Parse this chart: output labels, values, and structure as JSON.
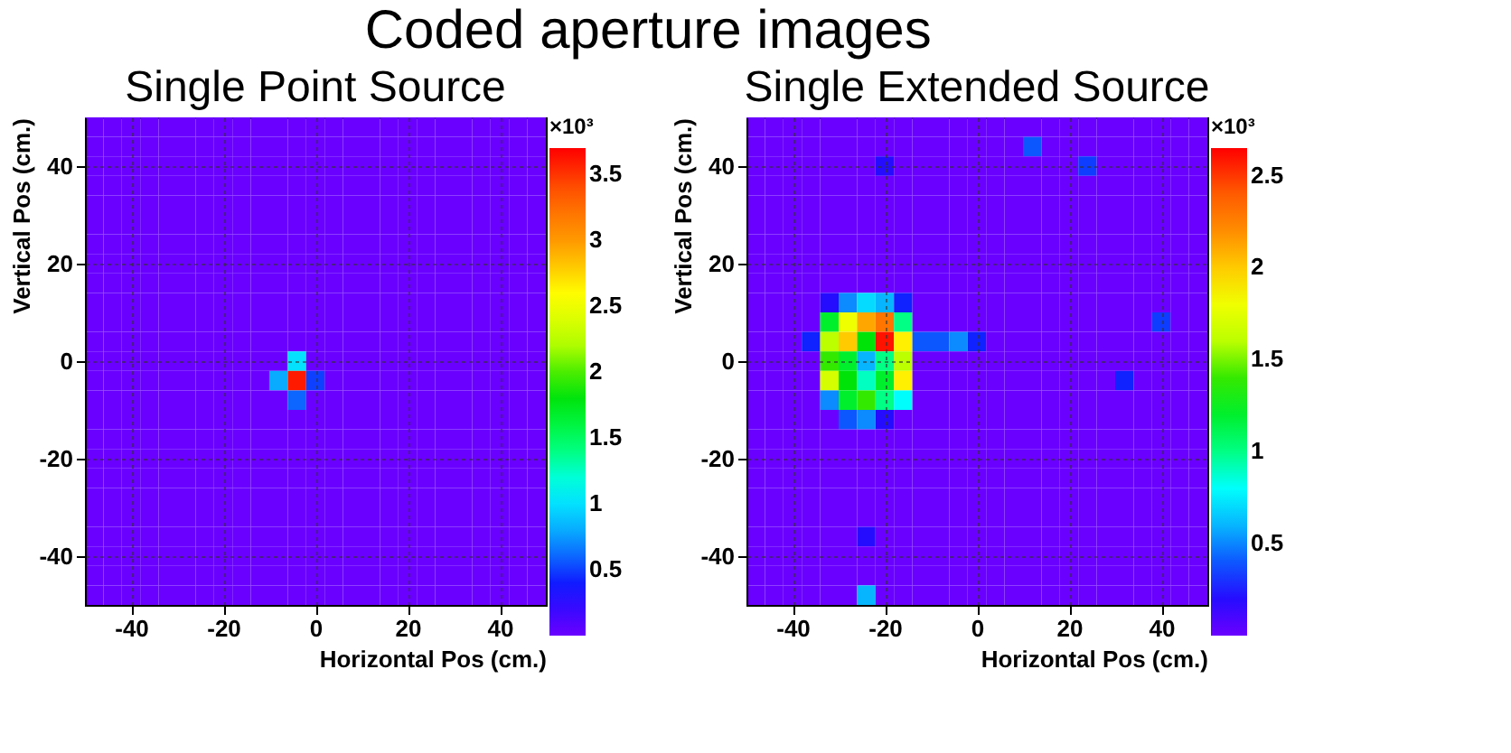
{
  "chart_data": [
    {
      "type": "heatmap",
      "title": "Single Point Source",
      "xlabel": "Horizontal Pos (cm.)",
      "ylabel": "Vertical Pos (cm.)",
      "clabel": "×10³",
      "annotations": [
        "Coded aperture images"
      ],
      "x": [
        -48,
        -44,
        -40,
        -36,
        -32,
        -28,
        -24,
        -20,
        -16,
        -12,
        -8,
        -4,
        0,
        4,
        8,
        12,
        16,
        20,
        24,
        28,
        32,
        36,
        40,
        44,
        48
      ],
      "y": [
        48,
        44,
        40,
        36,
        32,
        28,
        24,
        20,
        16,
        12,
        8,
        4,
        0,
        -4,
        -8,
        -12,
        -16,
        -20,
        -24,
        -28,
        -32,
        -36,
        -40,
        -44,
        -48
      ],
      "xlim": [
        -50,
        50
      ],
      "ylim": [
        -50,
        50
      ],
      "xticks": [
        -40,
        -20,
        0,
        20,
        40
      ],
      "yticks": [
        -40,
        -20,
        0,
        20,
        40
      ],
      "grid": true,
      "clim": [
        0,
        3.7
      ],
      "cticks": [
        0.5,
        1,
        1.5,
        2,
        2.5,
        3,
        3.5
      ],
      "cells": [
        [
          0,
          0,
          0,
          0,
          0,
          0,
          0,
          0,
          0,
          0,
          0,
          0,
          0,
          0,
          0,
          0,
          0,
          0,
          0,
          0,
          0,
          0,
          0,
          0,
          0
        ],
        [
          0,
          0,
          0,
          0,
          0,
          0,
          0,
          0,
          0,
          0,
          0,
          0,
          0,
          0,
          0,
          0,
          0,
          0,
          0,
          0,
          0,
          0,
          0,
          0,
          0
        ],
        [
          0,
          0,
          0,
          0,
          0,
          0,
          0,
          0,
          0,
          0,
          0,
          0,
          0,
          0,
          0,
          0,
          0,
          0,
          0,
          0,
          0,
          0,
          0,
          0,
          0
        ],
        [
          0,
          0,
          0,
          0,
          0,
          0,
          0,
          0,
          0,
          0,
          0,
          0,
          0,
          0,
          0,
          0,
          0,
          0,
          0,
          0,
          0,
          0,
          0,
          0,
          0
        ],
        [
          0,
          0,
          0,
          0,
          0,
          0,
          0,
          0,
          0,
          0,
          0,
          0,
          0,
          0,
          0,
          0,
          0,
          0,
          0,
          0,
          0,
          0,
          0,
          0,
          0
        ],
        [
          0,
          0,
          0,
          0,
          0,
          0,
          0,
          0,
          0,
          0,
          0,
          0,
          0,
          0,
          0,
          0,
          0,
          0,
          0,
          0,
          0,
          0,
          0,
          0,
          0
        ],
        [
          0,
          0,
          0,
          0,
          0,
          0,
          0,
          0,
          0,
          0,
          0,
          0,
          0,
          0,
          0,
          0,
          0,
          0,
          0,
          0,
          0,
          0,
          0,
          0,
          0
        ],
        [
          0,
          0,
          0,
          0,
          0,
          0,
          0,
          0,
          0,
          0,
          0,
          0,
          0,
          0,
          0,
          0,
          0,
          0,
          0,
          0,
          0,
          0,
          0,
          0,
          0
        ],
        [
          0,
          0,
          0,
          0,
          0,
          0,
          0,
          0,
          0,
          0,
          0,
          0,
          0,
          0,
          0,
          0,
          0,
          0,
          0,
          0,
          0,
          0,
          0,
          0,
          0
        ],
        [
          0,
          0,
          0,
          0,
          0,
          0,
          0,
          0,
          0,
          0,
          0,
          0,
          0,
          0,
          0,
          0,
          0,
          0,
          0,
          0,
          0,
          0,
          0,
          0,
          0
        ],
        [
          0,
          0,
          0,
          0,
          0,
          0,
          0,
          0,
          0,
          0,
          0,
          0,
          0,
          0,
          0,
          0,
          0,
          0,
          0,
          0,
          0,
          0,
          0,
          0,
          0
        ],
        [
          0,
          0,
          0,
          0,
          0,
          0,
          0,
          0,
          0,
          0,
          0,
          0,
          0,
          0,
          0,
          0,
          0,
          0,
          0,
          0,
          0,
          0,
          0,
          0,
          0
        ],
        [
          0,
          0,
          0,
          0,
          0,
          0,
          0,
          0,
          0,
          0,
          0,
          1.0,
          0,
          0,
          0,
          0,
          0,
          0,
          0,
          0,
          0,
          0,
          0,
          0,
          0
        ],
        [
          0,
          0,
          0,
          0,
          0,
          0,
          0,
          0,
          0,
          0,
          0.8,
          3.6,
          0.5,
          0,
          0,
          0,
          0,
          0,
          0,
          0,
          0,
          0,
          0,
          0,
          0
        ],
        [
          0,
          0,
          0,
          0,
          0,
          0,
          0,
          0,
          0,
          0,
          0,
          0.6,
          0,
          0,
          0,
          0,
          0,
          0,
          0,
          0,
          0,
          0,
          0,
          0,
          0
        ],
        [
          0,
          0,
          0,
          0,
          0,
          0,
          0,
          0,
          0,
          0,
          0,
          0,
          0,
          0,
          0,
          0,
          0,
          0,
          0,
          0,
          0,
          0,
          0,
          0,
          0
        ],
        [
          0,
          0,
          0,
          0,
          0,
          0,
          0,
          0,
          0,
          0,
          0,
          0,
          0,
          0,
          0,
          0,
          0,
          0,
          0,
          0,
          0,
          0,
          0,
          0,
          0
        ],
        [
          0,
          0,
          0,
          0,
          0,
          0,
          0,
          0,
          0,
          0,
          0,
          0,
          0,
          0,
          0,
          0,
          0,
          0,
          0,
          0,
          0,
          0,
          0,
          0,
          0
        ],
        [
          0,
          0,
          0,
          0,
          0,
          0,
          0,
          0,
          0,
          0,
          0,
          0,
          0,
          0,
          0,
          0,
          0,
          0,
          0,
          0,
          0,
          0,
          0,
          0,
          0
        ],
        [
          0,
          0,
          0,
          0,
          0,
          0,
          0,
          0,
          0,
          0,
          0,
          0,
          0,
          0,
          0,
          0,
          0,
          0,
          0,
          0,
          0,
          0,
          0,
          0,
          0
        ],
        [
          0,
          0,
          0,
          0,
          0,
          0,
          0,
          0,
          0,
          0,
          0,
          0,
          0,
          0,
          0,
          0,
          0,
          0,
          0,
          0,
          0,
          0,
          0,
          0,
          0
        ],
        [
          0,
          0,
          0,
          0,
          0,
          0,
          0,
          0,
          0,
          0,
          0,
          0,
          0,
          0,
          0,
          0,
          0,
          0,
          0,
          0,
          0,
          0,
          0,
          0,
          0
        ],
        [
          0,
          0,
          0,
          0,
          0,
          0,
          0,
          0,
          0,
          0,
          0,
          0,
          0,
          0,
          0,
          0,
          0,
          0,
          0,
          0,
          0,
          0,
          0,
          0,
          0
        ],
        [
          0,
          0,
          0,
          0,
          0,
          0,
          0,
          0,
          0,
          0,
          0,
          0,
          0,
          0,
          0,
          0,
          0,
          0,
          0,
          0,
          0,
          0,
          0,
          0,
          0
        ],
        [
          0,
          0,
          0,
          0,
          0,
          0,
          0,
          0,
          0,
          0,
          0,
          0,
          0,
          0,
          0,
          0,
          0,
          0,
          0,
          0,
          0,
          0,
          0,
          0,
          0
        ]
      ]
    },
    {
      "type": "heatmap",
      "title": "Single Extended Source",
      "xlabel": "Horizontal Pos (cm.)",
      "ylabel": "Vertical Pos (cm.)",
      "clabel": "×10³",
      "x": [
        -48,
        -44,
        -40,
        -36,
        -32,
        -28,
        -24,
        -20,
        -16,
        -12,
        -8,
        -4,
        0,
        4,
        8,
        12,
        16,
        20,
        24,
        28,
        32,
        36,
        40,
        44,
        48
      ],
      "y": [
        48,
        44,
        40,
        36,
        32,
        28,
        24,
        20,
        16,
        12,
        8,
        4,
        0,
        -4,
        -8,
        -12,
        -16,
        -20,
        -24,
        -28,
        -32,
        -36,
        -40,
        -44,
        -48
      ],
      "xlim": [
        -50,
        50
      ],
      "ylim": [
        -50,
        50
      ],
      "xticks": [
        -40,
        -20,
        0,
        20,
        40
      ],
      "yticks": [
        -40,
        -20,
        0,
        20,
        40
      ],
      "grid": true,
      "clim": [
        0,
        2.65
      ],
      "cticks": [
        0.5,
        1,
        1.5,
        2,
        2.5
      ],
      "cells": [
        [
          0,
          0,
          0,
          0,
          0,
          0,
          0,
          0,
          0,
          0,
          0,
          0,
          0,
          0,
          0,
          0,
          0,
          0,
          0,
          0,
          0,
          0,
          0,
          0,
          0
        ],
        [
          0,
          0,
          0,
          0,
          0,
          0,
          0,
          0,
          0,
          0,
          0,
          0,
          0,
          0,
          0,
          0.4,
          0,
          0,
          0,
          0,
          0,
          0,
          0,
          0,
          0
        ],
        [
          0,
          0,
          0,
          0,
          0,
          0,
          0,
          0.2,
          0,
          0,
          0,
          0,
          0,
          0,
          0,
          0,
          0,
          0,
          0.35,
          0,
          0,
          0,
          0,
          0,
          0
        ],
        [
          0,
          0,
          0,
          0,
          0,
          0,
          0,
          0,
          0,
          0,
          0,
          0,
          0,
          0,
          0,
          0,
          0,
          0,
          0,
          0,
          0,
          0,
          0,
          0,
          0
        ],
        [
          0,
          0,
          0,
          0,
          0,
          0,
          0,
          0,
          0,
          0,
          0,
          0,
          0,
          0,
          0,
          0,
          0,
          0,
          0,
          0,
          0,
          0,
          0,
          0,
          0
        ],
        [
          0,
          0,
          0,
          0,
          0,
          0,
          0,
          0,
          0,
          0,
          0,
          0,
          0,
          0,
          0,
          0,
          0,
          0,
          0,
          0,
          0,
          0,
          0,
          0,
          0
        ],
        [
          0,
          0,
          0,
          0,
          0,
          0,
          0,
          0,
          0,
          0,
          0,
          0,
          0,
          0,
          0,
          0,
          0,
          0,
          0,
          0,
          0,
          0,
          0,
          0,
          0
        ],
        [
          0,
          0,
          0,
          0,
          0,
          0,
          0,
          0,
          0,
          0,
          0,
          0,
          0,
          0,
          0,
          0,
          0,
          0,
          0,
          0,
          0,
          0,
          0,
          0,
          0
        ],
        [
          0,
          0,
          0,
          0,
          0,
          0,
          0,
          0,
          0,
          0,
          0,
          0,
          0,
          0,
          0,
          0,
          0,
          0,
          0,
          0,
          0,
          0,
          0,
          0,
          0
        ],
        [
          0,
          0,
          0,
          0,
          0.2,
          0.5,
          0.7,
          0.6,
          0.3,
          0,
          0,
          0,
          0,
          0,
          0,
          0,
          0,
          0,
          0,
          0,
          0,
          0,
          0,
          0,
          0
        ],
        [
          0,
          0,
          0,
          0,
          1.2,
          1.8,
          2.1,
          2.3,
          1.0,
          0,
          0,
          0,
          0,
          0,
          0,
          0,
          0,
          0,
          0,
          0,
          0,
          0,
          0.35,
          0,
          0
        ],
        [
          0,
          0,
          0,
          0.3,
          1.6,
          2.0,
          1.3,
          2.6,
          1.9,
          0.4,
          0.4,
          0.5,
          0.3,
          0,
          0,
          0,
          0,
          0,
          0,
          0,
          0,
          0,
          0,
          0,
          0
        ],
        [
          0,
          0,
          0,
          0,
          1.4,
          1.2,
          0.6,
          1.0,
          1.6,
          0,
          0,
          0,
          0,
          0,
          0,
          0,
          0,
          0,
          0,
          0,
          0,
          0,
          0,
          0,
          0
        ],
        [
          0,
          0,
          0,
          0,
          1.7,
          1.3,
          0.9,
          1.2,
          1.9,
          0,
          0,
          0,
          0,
          0,
          0,
          0,
          0,
          0,
          0,
          0,
          0.3,
          0,
          0,
          0,
          0
        ],
        [
          0,
          0,
          0,
          0,
          0.5,
          1.2,
          1.4,
          1.0,
          0.8,
          0,
          0,
          0,
          0,
          0,
          0,
          0,
          0,
          0,
          0,
          0,
          0,
          0,
          0,
          0,
          0
        ],
        [
          0,
          0,
          0,
          0,
          0,
          0.4,
          0.5,
          0.2,
          0,
          0,
          0,
          0,
          0,
          0,
          0,
          0,
          0,
          0,
          0,
          0,
          0,
          0,
          0,
          0,
          0
        ],
        [
          0,
          0,
          0,
          0,
          0,
          0,
          0,
          0,
          0,
          0,
          0,
          0,
          0,
          0,
          0,
          0,
          0,
          0,
          0,
          0,
          0,
          0,
          0,
          0,
          0
        ],
        [
          0,
          0,
          0,
          0,
          0,
          0,
          0,
          0,
          0,
          0,
          0,
          0,
          0,
          0,
          0,
          0,
          0,
          0,
          0,
          0,
          0,
          0,
          0,
          0,
          0
        ],
        [
          0,
          0,
          0,
          0,
          0,
          0,
          0,
          0,
          0,
          0,
          0,
          0,
          0,
          0,
          0,
          0,
          0,
          0,
          0,
          0,
          0,
          0,
          0,
          0,
          0
        ],
        [
          0,
          0,
          0,
          0,
          0,
          0,
          0,
          0,
          0,
          0,
          0,
          0,
          0,
          0,
          0,
          0,
          0,
          0,
          0,
          0,
          0,
          0,
          0,
          0,
          0
        ],
        [
          0,
          0,
          0,
          0,
          0,
          0,
          0,
          0,
          0,
          0,
          0,
          0,
          0,
          0,
          0,
          0,
          0,
          0,
          0,
          0,
          0,
          0,
          0,
          0,
          0
        ],
        [
          0,
          0,
          0,
          0,
          0,
          0,
          0.2,
          0,
          0,
          0,
          0,
          0,
          0,
          0,
          0,
          0,
          0,
          0,
          0,
          0,
          0,
          0,
          0,
          0,
          0
        ],
        [
          0,
          0,
          0,
          0,
          0,
          0,
          0,
          0,
          0,
          0,
          0,
          0,
          0,
          0,
          0,
          0,
          0,
          0,
          0,
          0,
          0,
          0,
          0,
          0,
          0
        ],
        [
          0,
          0,
          0,
          0,
          0,
          0,
          0,
          0,
          0,
          0,
          0,
          0,
          0,
          0,
          0,
          0,
          0,
          0,
          0,
          0,
          0,
          0,
          0,
          0,
          0
        ],
        [
          0,
          0,
          0,
          0,
          0,
          0,
          0.6,
          0,
          0,
          0,
          0,
          0,
          0,
          0,
          0,
          0,
          0,
          0,
          0,
          0,
          0,
          0,
          0,
          0,
          0
        ]
      ]
    }
  ]
}
